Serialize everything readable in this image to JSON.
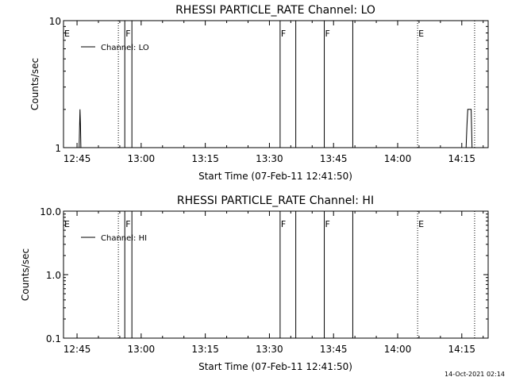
{
  "footer_timestamp": "14-Oct-2021 02:14",
  "chart_data": [
    {
      "type": "line",
      "title": "RHESSI PARTICLE_RATE Channel: LO",
      "xlabel": "Start Time (07-Feb-11 12:41:50)",
      "ylabel": "Counts/sec",
      "yscale": "log",
      "ylim": [
        1,
        10
      ],
      "xlim": [
        "12:41:50",
        "14:21:10"
      ],
      "xtick_labels": [
        "12:45",
        "13:00",
        "13:15",
        "13:30",
        "13:45",
        "14:00",
        "14:15"
      ],
      "ytick_labels": [
        "1",
        "10"
      ],
      "legend": "Channel: LO",
      "legend_position": "top-left",
      "series": [
        {
          "name": "Channel: LO",
          "points": [
            [
              "12:45:30",
              1
            ],
            [
              "12:45:36",
              1.5
            ],
            [
              "12:45:42",
              2
            ],
            [
              "12:45:48",
              1.5
            ],
            [
              "12:45:54",
              1
            ],
            [
              "14:16:00",
              1
            ],
            [
              "14:16:12",
              1.5
            ],
            [
              "14:16:24",
              2
            ],
            [
              "14:17:12",
              2
            ],
            [
              "14:17:24",
              1
            ]
          ]
        }
      ],
      "flags": [
        {
          "label": "E",
          "time": "12:41:50",
          "style": "dotted"
        },
        {
          "label": "",
          "time": "12:54:40",
          "style": "dotted"
        },
        {
          "label": "F",
          "time": "12:56:10",
          "style": "solid"
        },
        {
          "label": "",
          "time": "12:57:50",
          "style": "solid"
        },
        {
          "label": "F",
          "time": "13:32:30",
          "style": "solid"
        },
        {
          "label": "",
          "time": "13:36:10",
          "style": "solid"
        },
        {
          "label": "F",
          "time": "13:42:50",
          "style": "solid"
        },
        {
          "label": "",
          "time": "13:49:30",
          "style": "solid"
        },
        {
          "label": "E",
          "time": "14:04:40",
          "style": "dotted"
        },
        {
          "label": "",
          "time": "14:18:00",
          "style": "dotted"
        }
      ]
    },
    {
      "type": "line",
      "title": "RHESSI PARTICLE_RATE Channel: HI",
      "xlabel": "Start Time (07-Feb-11 12:41:50)",
      "ylabel": "Counts/sec",
      "yscale": "log",
      "ylim": [
        0.1,
        10
      ],
      "xlim": [
        "12:41:50",
        "14:21:10"
      ],
      "xtick_labels": [
        "12:45",
        "13:00",
        "13:15",
        "13:30",
        "13:45",
        "14:00",
        "14:15"
      ],
      "ytick_labels": [
        "0.1",
        "1.0",
        "10.0"
      ],
      "legend": "Channel: HI",
      "legend_position": "top-left",
      "series": [
        {
          "name": "Channel: HI",
          "points": []
        }
      ],
      "flags": [
        {
          "label": "E",
          "time": "12:41:50",
          "style": "dotted"
        },
        {
          "label": "",
          "time": "12:54:40",
          "style": "dotted"
        },
        {
          "label": "F",
          "time": "12:56:10",
          "style": "solid"
        },
        {
          "label": "",
          "time": "12:57:50",
          "style": "solid"
        },
        {
          "label": "F",
          "time": "13:32:30",
          "style": "solid"
        },
        {
          "label": "",
          "time": "13:36:10",
          "style": "solid"
        },
        {
          "label": "F",
          "time": "13:42:50",
          "style": "solid"
        },
        {
          "label": "",
          "time": "13:49:30",
          "style": "solid"
        },
        {
          "label": "E",
          "time": "14:04:40",
          "style": "dotted"
        },
        {
          "label": "",
          "time": "14:18:00",
          "style": "dotted"
        }
      ]
    }
  ]
}
